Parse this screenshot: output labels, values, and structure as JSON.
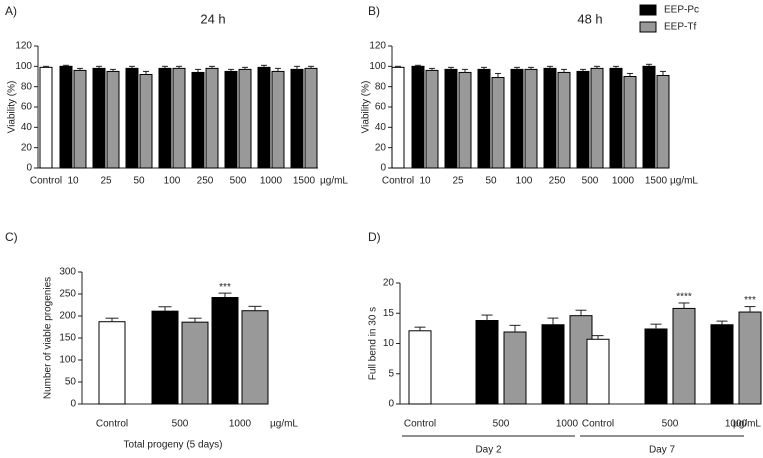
{
  "chart_data": [
    {
      "type": "bar",
      "label": "A)",
      "title": "24 h",
      "ylabel": "Viability (%)",
      "xunit": "µg/mL",
      "categories": [
        "Control",
        "10",
        "25",
        "50",
        "100",
        "250",
        "500",
        "1000",
        "1500"
      ],
      "ylim": [
        0,
        120
      ],
      "yticks": [
        0,
        20,
        40,
        60,
        80,
        100,
        120
      ],
      "control": {
        "color": "#ffffff",
        "values": [
          99,
          null,
          null,
          null,
          null,
          null,
          null,
          null,
          null
        ],
        "errors": [
          1,
          null,
          null,
          null,
          null,
          null,
          null,
          null,
          null
        ]
      },
      "series": [
        {
          "name": "EEP-Pc",
          "color": "#000000",
          "values": [
            null,
            100,
            98,
            98,
            98,
            94,
            95,
            99,
            97
          ],
          "errors": [
            null,
            1,
            2,
            2,
            2,
            3,
            2,
            2,
            3
          ]
        },
        {
          "name": "EEP-Tf",
          "color": "#999999",
          "values": [
            null,
            96,
            95,
            92,
            98,
            98,
            97,
            95,
            98
          ],
          "errors": [
            null,
            2,
            2,
            3,
            2,
            2,
            2,
            3,
            2
          ]
        }
      ]
    },
    {
      "type": "bar",
      "label": "B)",
      "title": "48 h",
      "ylabel": "Viability (%)",
      "xunit": "µg/mL",
      "legend": "upper right",
      "categories": [
        "Control",
        "10",
        "25",
        "50",
        "100",
        "250",
        "500",
        "1000",
        "1500"
      ],
      "ylim": [
        0,
        120
      ],
      "yticks": [
        0,
        20,
        40,
        60,
        80,
        100,
        120
      ],
      "control": {
        "color": "#ffffff",
        "values": [
          99,
          null,
          null,
          null,
          null,
          null,
          null,
          null,
          null
        ],
        "errors": [
          1,
          null,
          null,
          null,
          null,
          null,
          null,
          null,
          null
        ]
      },
      "series": [
        {
          "name": "EEP-Pc",
          "color": "#000000",
          "values": [
            null,
            100,
            97,
            97,
            97,
            98,
            95,
            98,
            100
          ],
          "errors": [
            null,
            1,
            2,
            2,
            2,
            2,
            2,
            2,
            2
          ]
        },
        {
          "name": "EEP-Tf",
          "color": "#999999",
          "values": [
            null,
            96,
            94,
            89,
            97,
            94,
            98,
            90,
            91
          ],
          "errors": [
            null,
            2,
            3,
            4,
            2,
            3,
            2,
            3,
            4
          ]
        }
      ]
    },
    {
      "type": "bar",
      "label": "C)",
      "ylabel": "Number of viable progenies",
      "xlabel": "Total progeny (5 days)",
      "xunit": "µg/mL",
      "categories": [
        "Control",
        "500",
        "1000"
      ],
      "ylim": [
        0,
        300
      ],
      "yticks": [
        0,
        50,
        100,
        150,
        200,
        250,
        300
      ],
      "control": {
        "color": "#ffffff",
        "values": [
          187,
          null,
          null
        ],
        "errors": [
          8,
          null,
          null
        ]
      },
      "series": [
        {
          "name": "EEP-Pc",
          "color": "#000000",
          "values": [
            null,
            211,
            242
          ],
          "errors": [
            null,
            10,
            10
          ],
          "annotations": [
            null,
            null,
            "***"
          ]
        },
        {
          "name": "EEP-Tf",
          "color": "#999999",
          "values": [
            null,
            186,
            212
          ],
          "errors": [
            null,
            9,
            10
          ]
        }
      ]
    },
    {
      "type": "bar",
      "label": "D)",
      "ylabel": "Full bend in 30 s",
      "xunit": "µg/mL",
      "categories": [
        "Control",
        "500",
        "1000",
        "Control",
        "500",
        "1000"
      ],
      "groups": [
        "Day 2",
        "Day 7"
      ],
      "ylim": [
        0,
        20
      ],
      "yticks": [
        0,
        5,
        10,
        15,
        20
      ],
      "control": {
        "color": "#ffffff",
        "values": [
          12.1,
          null,
          null,
          10.7,
          null,
          null
        ],
        "errors": [
          0.6,
          null,
          null,
          0.6,
          null,
          null
        ]
      },
      "series": [
        {
          "name": "EEP-Pc",
          "color": "#000000",
          "values": [
            null,
            13.8,
            13.1,
            null,
            12.4,
            13.1
          ],
          "errors": [
            null,
            0.9,
            1.1,
            null,
            0.8,
            0.6
          ]
        },
        {
          "name": "EEP-Tf",
          "color": "#999999",
          "values": [
            null,
            11.9,
            14.6,
            null,
            15.8,
            15.2
          ],
          "errors": [
            null,
            1.1,
            0.9,
            null,
            0.9,
            0.9
          ],
          "annotations": [
            null,
            null,
            null,
            null,
            "****",
            "***"
          ]
        }
      ]
    }
  ]
}
